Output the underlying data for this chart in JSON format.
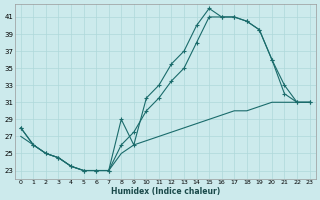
{
  "xlabel": "Humidex (Indice chaleur)",
  "background_color": "#cceaec",
  "line_color": "#1a6b6b",
  "grid_color": "#afd8da",
  "xlim": [
    -0.5,
    23.5
  ],
  "ylim": [
    22,
    42.5
  ],
  "yticks": [
    23,
    25,
    27,
    29,
    31,
    33,
    35,
    37,
    39,
    41
  ],
  "xticks": [
    0,
    1,
    2,
    3,
    4,
    5,
    6,
    7,
    8,
    9,
    10,
    11,
    12,
    13,
    14,
    15,
    16,
    17,
    18,
    19,
    20,
    21,
    22,
    23
  ],
  "line1_x": [
    0,
    1,
    2,
    3,
    4,
    5,
    6,
    7,
    8,
    9,
    10,
    11,
    12,
    13,
    14,
    15,
    16,
    17,
    18,
    19,
    20,
    21,
    22,
    23
  ],
  "line1_y": [
    28,
    26,
    25,
    24.5,
    23.5,
    23,
    23,
    23,
    29,
    26,
    31.5,
    33,
    35.5,
    37,
    40,
    42,
    41,
    41,
    40.5,
    39.5,
    36,
    32,
    31,
    31
  ],
  "line2_x": [
    0,
    1,
    2,
    3,
    4,
    5,
    6,
    7,
    8,
    9,
    10,
    11,
    12,
    13,
    14,
    15,
    16,
    17,
    18,
    19,
    20,
    21,
    22,
    23
  ],
  "line2_y": [
    28,
    26,
    25,
    24.5,
    23.5,
    23,
    23,
    23,
    26,
    27.5,
    30,
    31.5,
    33.5,
    35,
    38,
    41,
    41,
    41,
    40.5,
    39.5,
    36,
    33,
    31,
    31
  ],
  "line3_x": [
    0,
    1,
    2,
    3,
    4,
    5,
    6,
    7,
    8,
    9,
    10,
    11,
    12,
    13,
    14,
    15,
    16,
    17,
    18,
    19,
    20,
    21,
    22,
    23
  ],
  "line3_y": [
    27,
    26,
    25,
    24.5,
    23.5,
    23,
    23,
    23,
    25,
    26,
    26.5,
    27,
    27.5,
    28,
    28.5,
    29,
    29.5,
    30,
    30,
    30.5,
    31,
    31,
    31,
    31
  ]
}
